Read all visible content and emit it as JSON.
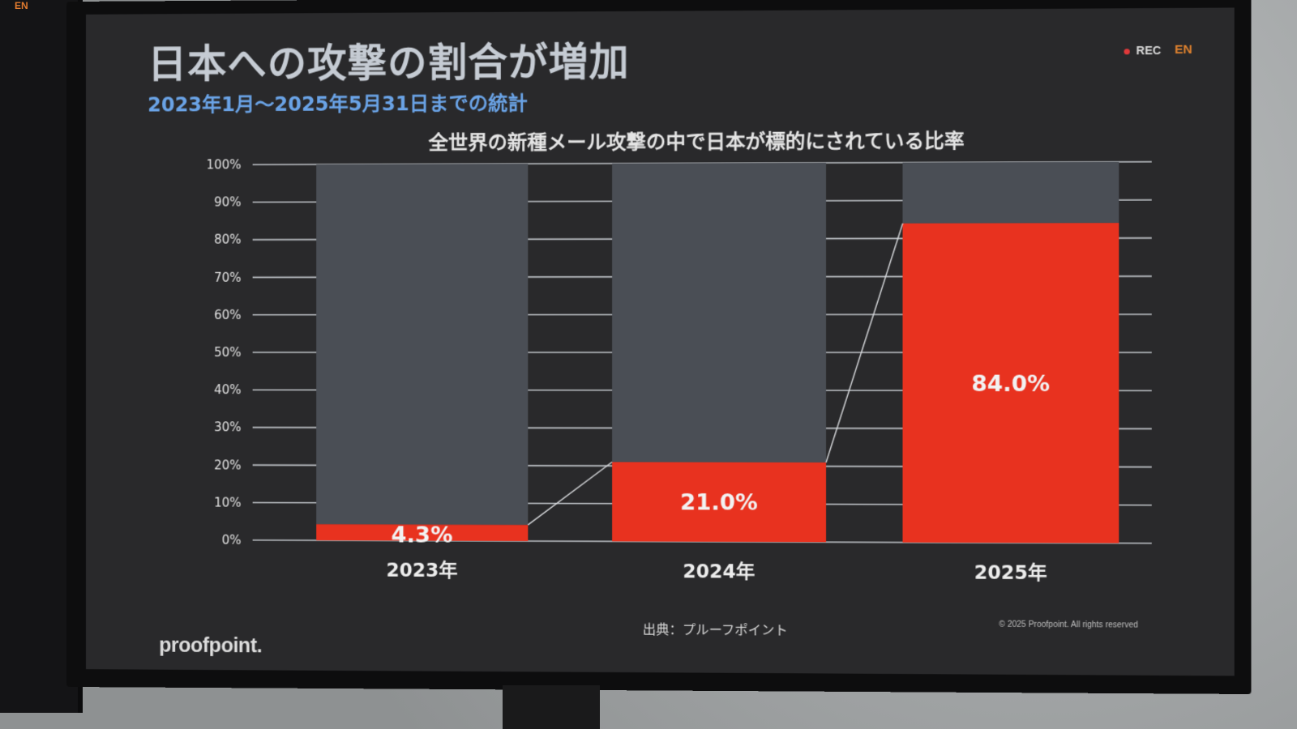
{
  "slide": {
    "title": "日本への攻撃の割合が増加",
    "subtitle": "2023年1月～2025年5月31日までの統計",
    "rec_label": "REC",
    "lang_tag": "EN",
    "left_monitor_tag": "EN",
    "logo": "proofpoint.",
    "source": "出典：プルーフポイント",
    "copyright": "© 2025 Proofpoint. All rights reserved"
  },
  "chart_data": {
    "type": "bar",
    "stacked": true,
    "title": "全世界の新種メール攻撃の中で日本が標的にされている比率",
    "categories": [
      "2023年",
      "2024年",
      "2025年"
    ],
    "series": [
      {
        "values": [
          4.3,
          21.0,
          84.0
        ],
        "color": "#e8321f"
      },
      {
        "values": [
          95.7,
          79.0,
          16.0
        ],
        "color": "#4a4e55"
      }
    ],
    "data_labels": [
      "4.3%",
      "21.0%",
      "84.0%"
    ],
    "y_ticks": [
      "0%",
      "10%",
      "20%",
      "30%",
      "40%",
      "50%",
      "60%",
      "70%",
      "80%",
      "90%",
      "100%"
    ],
    "ylim": [
      0,
      100
    ],
    "grid": true,
    "connector_lines": true
  }
}
